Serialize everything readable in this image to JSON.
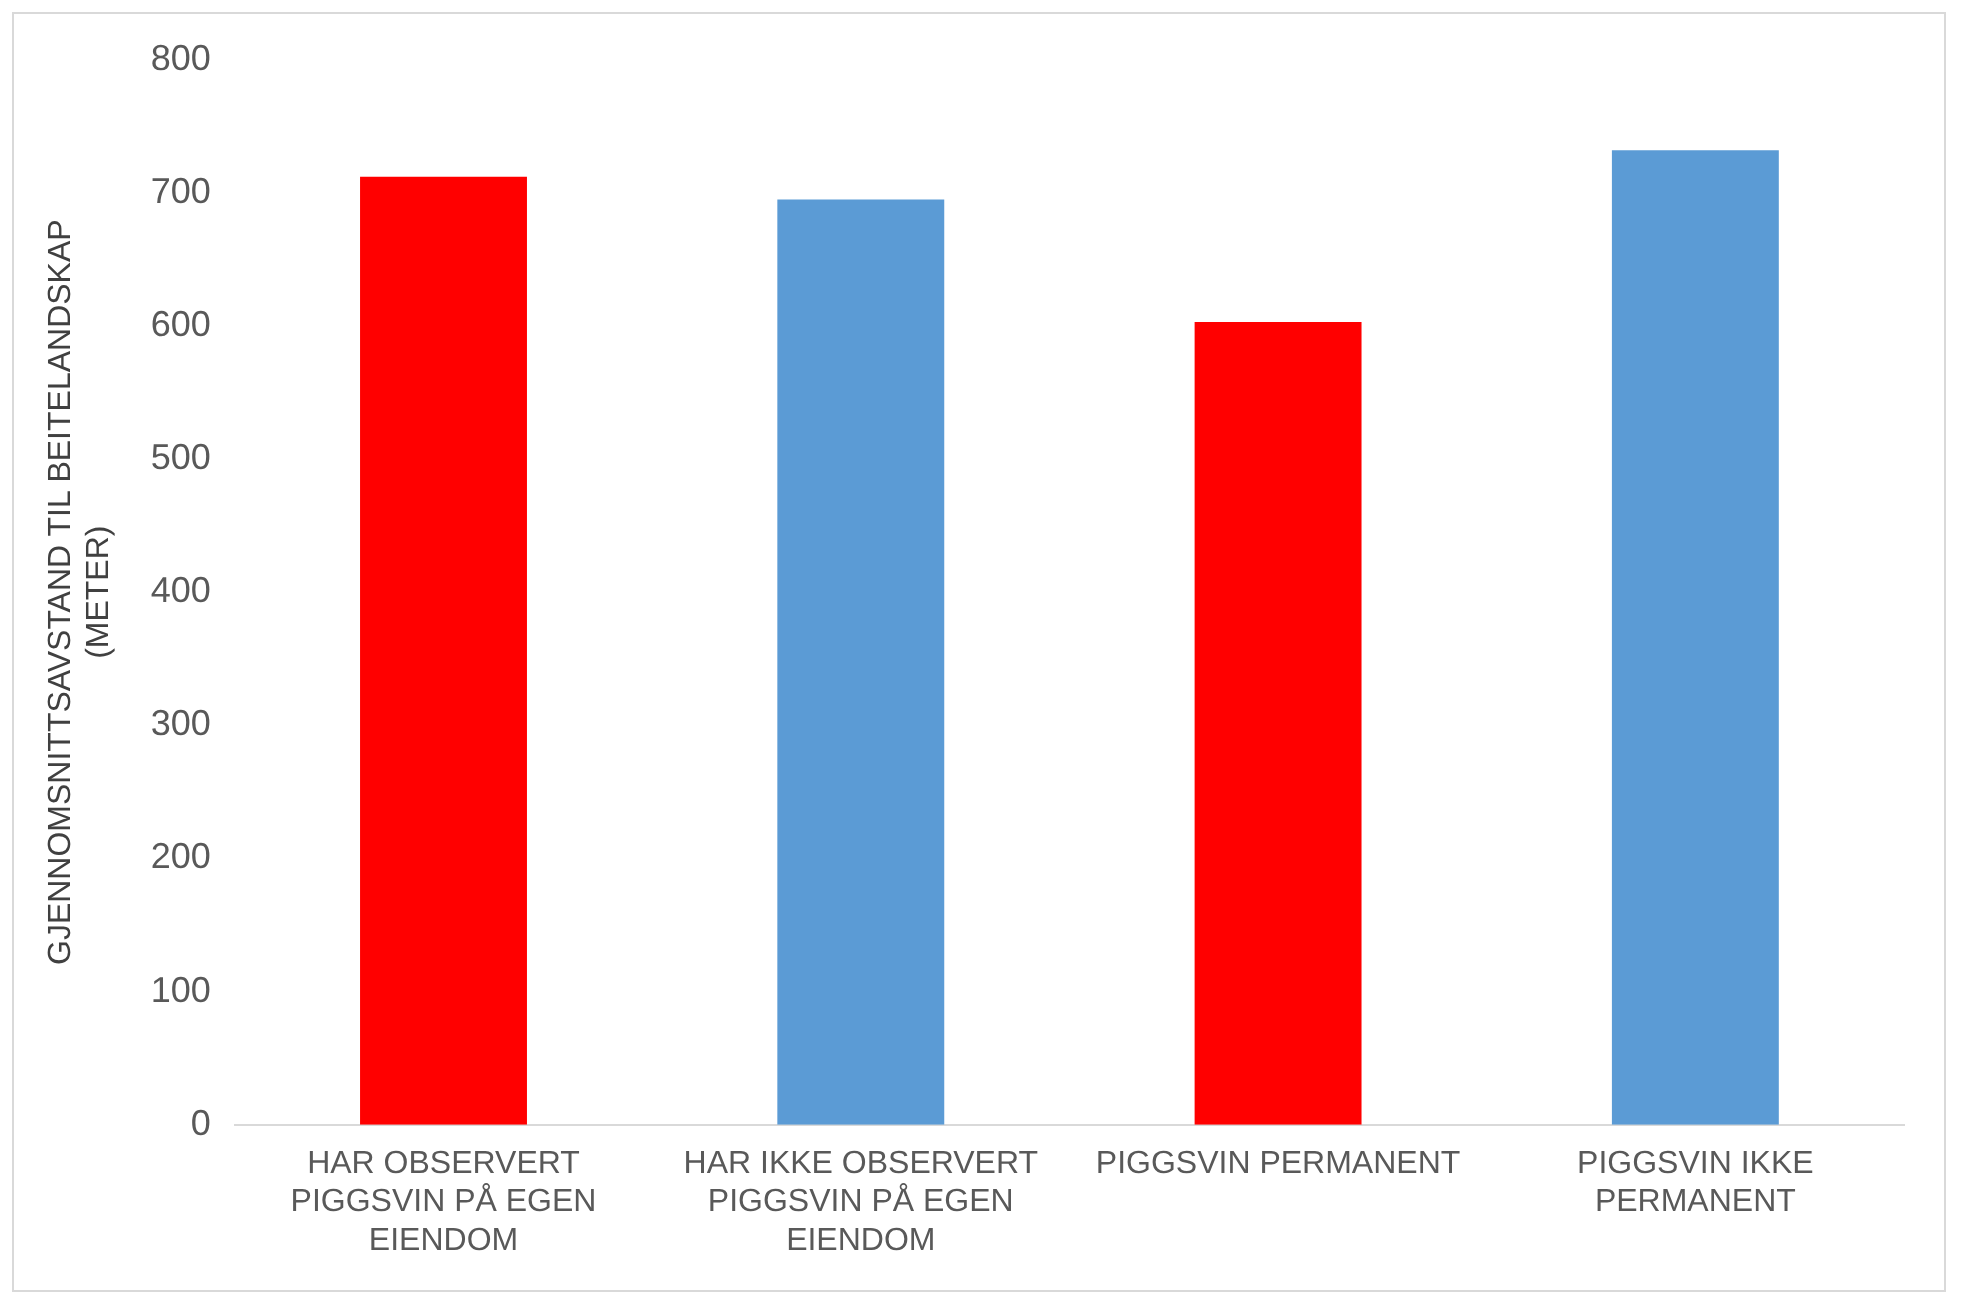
{
  "chart_data": {
    "type": "bar",
    "ylabel": "GJENNOMSNITTSAVSTAND TIL BEITELANDSKAP (METER)",
    "categories": [
      "HAR OBSERVERT PIGGSVIN PÅ EGEN EIENDOM",
      "HAR IKKE OBSERVERT PIGGSVIN PÅ EGEN EIENDOM",
      "PIGGSVIN PERMANENT",
      "PIGGSVIN IKKE PERMANENT"
    ],
    "values": [
      712,
      695,
      603,
      732
    ],
    "colors": [
      "#ff0000",
      "#5b9bd5",
      "#ff0000",
      "#5b9bd5"
    ],
    "ylim": [
      0,
      800
    ],
    "yticks": [
      0,
      100,
      200,
      300,
      400,
      500,
      600,
      700,
      800
    ],
    "grid": false
  }
}
